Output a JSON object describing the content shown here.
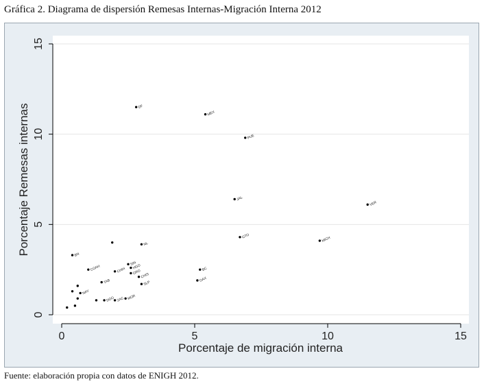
{
  "caption": "Gráfica 2. Diagrama de dispersión Remesas Internas-Migración Interna 2012",
  "source": "Fuente: elaboración propia con datos de ENIGH 2012.",
  "colors": {
    "frame_bg": "#e8eef3",
    "plot_bg": "#ffffff",
    "marker": "#000000",
    "grid": "#e6e6e6"
  },
  "chart_data": {
    "type": "scatter",
    "title": "",
    "xlabel": "Porcentaje de migración interna",
    "ylabel": "Porcentaje Remesas internas",
    "xlim": [
      0,
      15
    ],
    "ylim": [
      0,
      15
    ],
    "xticks": [
      "0",
      "5",
      "10",
      "15"
    ],
    "yticks": [
      "0",
      "5",
      "10",
      "15"
    ],
    "grid": true,
    "points": [
      {
        "x": 2.8,
        "y": 11.5,
        "label": "DF"
      },
      {
        "x": 5.4,
        "y": 11.1,
        "label": "MEX"
      },
      {
        "x": 6.9,
        "y": 9.8,
        "label": "PUE"
      },
      {
        "x": 11.5,
        "y": 6.1,
        "label": "VER"
      },
      {
        "x": 6.5,
        "y": 6.4,
        "label": "JAL"
      },
      {
        "x": 6.7,
        "y": 4.3,
        "label": "GTO"
      },
      {
        "x": 9.7,
        "y": 4.1,
        "label": "MICH"
      },
      {
        "x": 3.0,
        "y": 3.9,
        "label": "NL"
      },
      {
        "x": 0.4,
        "y": 3.3,
        "label": "BN"
      },
      {
        "x": 1.9,
        "y": 4.0,
        "label": ""
      },
      {
        "x": 1.0,
        "y": 2.5,
        "label": "COAH"
      },
      {
        "x": 2.0,
        "y": 2.4,
        "label": "CHIH"
      },
      {
        "x": 2.5,
        "y": 2.8,
        "label": "SIN"
      },
      {
        "x": 2.6,
        "y": 2.6,
        "label": "HGO"
      },
      {
        "x": 2.6,
        "y": 2.3,
        "label": "GRO"
      },
      {
        "x": 2.9,
        "y": 2.1,
        "label": "CHIS"
      },
      {
        "x": 1.5,
        "y": 1.8,
        "label": "TAB"
      },
      {
        "x": 3.0,
        "y": 1.7,
        "label": "SLP"
      },
      {
        "x": 5.2,
        "y": 2.5,
        "label": "BC"
      },
      {
        "x": 5.1,
        "y": 1.9,
        "label": "OAX"
      },
      {
        "x": 0.7,
        "y": 1.2,
        "label": "NAY"
      },
      {
        "x": 0.4,
        "y": 1.3,
        "label": ""
      },
      {
        "x": 0.6,
        "y": 1.6,
        "label": ""
      },
      {
        "x": 0.6,
        "y": 0.9,
        "label": ""
      },
      {
        "x": 1.3,
        "y": 0.8,
        "label": ""
      },
      {
        "x": 1.6,
        "y": 0.8,
        "label": "DGO"
      },
      {
        "x": 2.0,
        "y": 0.8,
        "label": "ZAC"
      },
      {
        "x": 2.4,
        "y": 0.9,
        "label": "MOR"
      },
      {
        "x": 0.2,
        "y": 0.4,
        "label": ""
      },
      {
        "x": 0.5,
        "y": 0.5,
        "label": ""
      }
    ]
  }
}
